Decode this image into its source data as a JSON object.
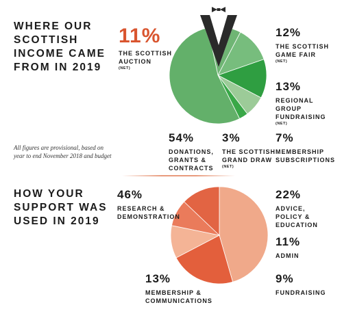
{
  "colors": {
    "income_palette": [
      "#63b06a",
      "#77bd7d",
      "#2f9e41",
      "#9ccb98",
      "#39a848",
      "#2a2a2a",
      "#6fb574",
      "#5aa862"
    ],
    "usage_palette": [
      "#f0a98a",
      "#e35f3c",
      "#f4b496",
      "#ea7b5b",
      "#e26443"
    ],
    "accent": "#d9552f"
  },
  "income": {
    "title": "WHERE OUR\nSCOTTISH\nINCOME CAME\nFROM IN 2019",
    "note": "All figures are provisional, based on\nyear to end November 2018 and budget",
    "labels": [
      {
        "pct": "11%",
        "name": "THE SCOTTISH\nAUCTION",
        "net": "(NET)"
      },
      {
        "pct": "12%",
        "name": "THE SCOTTISH\nGAME FAIR",
        "net": "(NET)"
      },
      {
        "pct": "13%",
        "name": "REGIONAL\nGROUP\nFUNDRAISING",
        "net": "(NET)"
      },
      {
        "pct": "54%",
        "name": "DONATIONS,\nGRANTS &\nCONTRACTS",
        "net": ""
      },
      {
        "pct": "3%",
        "name": "THE SCOTTISH\nGRAND DRAW",
        "net": "(NET)"
      },
      {
        "pct": "7%",
        "name": "MEMBERSHIP\nSUBSCRIPTIONS",
        "net": ""
      }
    ]
  },
  "usage": {
    "title": "HOW YOUR\nSUPPORT WAS\nUSED IN 2019",
    "labels": [
      {
        "pct": "46%",
        "name": "RESEARCH &\nDEMONSTRATION"
      },
      {
        "pct": "22%",
        "name": "ADVICE,\nPOLICY &\nEDUCATION"
      },
      {
        "pct": "11%",
        "name": "ADMIN"
      },
      {
        "pct": "9%",
        "name": "FUNDRAISING"
      },
      {
        "pct": "13%",
        "name": "MEMBERSHIP &\nCOMMUNICATIONS"
      }
    ]
  },
  "chart_data": [
    {
      "type": "pie",
      "title": "WHERE OUR SCOTTISH INCOME CAME FROM IN 2019",
      "categories": [
        "The Scottish Auction (net)",
        "The Scottish Game Fair (net)",
        "Regional Group Fundraising (net)",
        "Membership Subscriptions",
        "The Scottish Grand Draw (net)",
        "Donations, Grants & Contracts"
      ],
      "values": [
        11,
        12,
        13,
        7,
        3,
        54
      ]
    },
    {
      "type": "pie",
      "title": "HOW YOUR SUPPORT WAS USED IN 2019",
      "categories": [
        "Research & Demonstration",
        "Advice, Policy & Education",
        "Admin",
        "Fundraising",
        "Membership & Communications"
      ],
      "values": [
        46,
        22,
        11,
        9,
        13
      ]
    }
  ]
}
